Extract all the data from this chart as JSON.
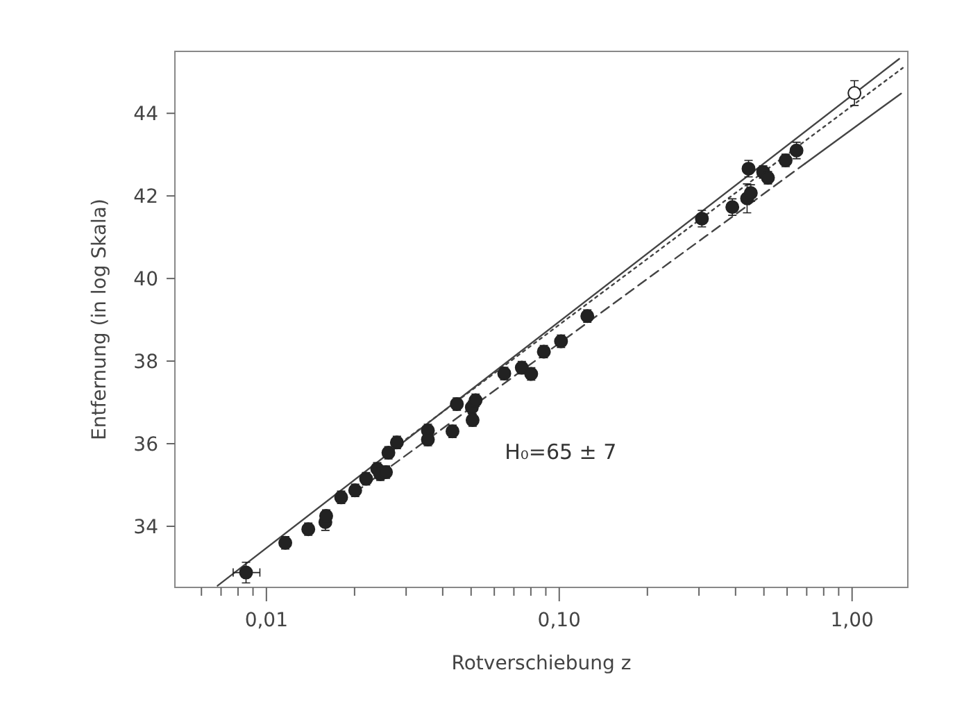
{
  "chart_data": {
    "type": "scatter",
    "xlabel": "Rotverschiebung z",
    "ylabel": "Entfernung (in log Skala)",
    "log": "x",
    "xlim": [
      0.00487,
      1.55
    ],
    "ylim": [
      32.52,
      45.5
    ],
    "xticks": [
      {
        "value": 0.006,
        "label": null
      },
      {
        "value": 0.007,
        "label": null
      },
      {
        "value": 0.008,
        "label": null
      },
      {
        "value": 0.009,
        "label": null
      },
      {
        "value": 0.01,
        "label": "0,01"
      },
      {
        "value": 0.02,
        "label": null
      },
      {
        "value": 0.03,
        "label": null
      },
      {
        "value": 0.04,
        "label": null
      },
      {
        "value": 0.05,
        "label": null
      },
      {
        "value": 0.06,
        "label": null
      },
      {
        "value": 0.07,
        "label": null
      },
      {
        "value": 0.08,
        "label": null
      },
      {
        "value": 0.09,
        "label": null
      },
      {
        "value": 0.1,
        "label": "0,10"
      },
      {
        "value": 0.2,
        "label": null
      },
      {
        "value": 0.3,
        "label": null
      },
      {
        "value": 0.4,
        "label": null
      },
      {
        "value": 0.5,
        "label": null
      },
      {
        "value": 0.6,
        "label": null
      },
      {
        "value": 0.7,
        "label": null
      },
      {
        "value": 0.8,
        "label": null
      },
      {
        "value": 0.9,
        "label": null
      },
      {
        "value": 1,
        "label": "1,00"
      }
    ],
    "yticks": [
      34,
      36,
      38,
      40,
      42,
      44
    ],
    "grid": false,
    "annotations": [
      "H₀=65 ± 7"
    ],
    "series": [
      {
        "type": "line",
        "color": "#444444",
        "line_style": "solid",
        "x": [
          0.00681,
          1.449
        ],
        "values": [
          32.56,
          45.32
        ]
      },
      {
        "type": "line",
        "color": "#444444",
        "line_style": "dotted",
        "x": [
          0.03,
          1.49
        ],
        "values": [
          36.11,
          45.1
        ]
      },
      {
        "type": "line",
        "color": "#444444",
        "line_style": "dashed",
        "x": [
          0.02,
          0.69
        ],
        "values": [
          34.81,
          42.78
        ]
      },
      {
        "type": "line",
        "color": "#444444",
        "line_style": "solid",
        "x": [
          0.69,
          1.47
        ],
        "values": [
          42.78,
          44.48
        ]
      },
      {
        "color": "#222222",
        "marker": "circle",
        "x": [
          0.00852,
          0.0116,
          0.0139,
          0.0159,
          0.016,
          0.018,
          0.0201,
          0.0219,
          0.0239,
          0.0245,
          0.0256,
          0.0261,
          0.0279,
          0.0356,
          0.0356,
          0.0432,
          0.0447,
          0.0503,
          0.0506,
          0.0518,
          0.0649,
          0.0745,
          0.0802,
          0.0886,
          0.1014,
          0.1247,
          0.307,
          0.39,
          0.438,
          0.451,
          0.443,
          0.497,
          0.516,
          0.593,
          0.646
        ],
        "values": [
          32.88,
          33.6,
          33.93,
          34.1,
          34.25,
          34.7,
          34.87,
          35.15,
          35.39,
          35.26,
          35.31,
          35.78,
          36.03,
          36.32,
          36.1,
          36.3,
          36.96,
          36.88,
          36.57,
          37.05,
          37.7,
          37.84,
          37.69,
          38.23,
          38.48,
          39.09,
          41.45,
          41.73,
          41.94,
          42.07,
          42.66,
          42.58,
          42.44,
          42.86,
          43.1
        ],
        "errors": [
          0.25,
          0.15,
          0.15,
          0.2,
          0.15,
          0.15,
          0.15,
          0.15,
          0.15,
          0.15,
          0.15,
          0.15,
          0.15,
          0.15,
          0.15,
          0.15,
          0.15,
          0.15,
          0.15,
          0.15,
          0.15,
          0.15,
          0.15,
          0.15,
          0.15,
          0.15,
          0.2,
          0.2,
          0.35,
          0.2,
          0.2,
          0.15,
          0.15,
          0.15,
          0.2
        ],
        "xerrors": [
          [
            0.0077,
            0.0095
          ],
          null,
          null,
          null,
          null,
          null,
          null,
          null,
          null,
          null,
          null,
          null,
          null,
          null,
          null,
          null,
          null,
          null,
          null,
          null,
          null,
          null,
          null,
          null,
          null,
          null,
          null,
          null,
          null,
          null,
          null,
          null,
          null,
          null,
          null
        ]
      },
      {
        "color": "#ffffff",
        "marker": "circle",
        "x": [
          1.019
        ],
        "values": [
          44.49
        ],
        "errors": [
          0.3
        ]
      }
    ]
  }
}
